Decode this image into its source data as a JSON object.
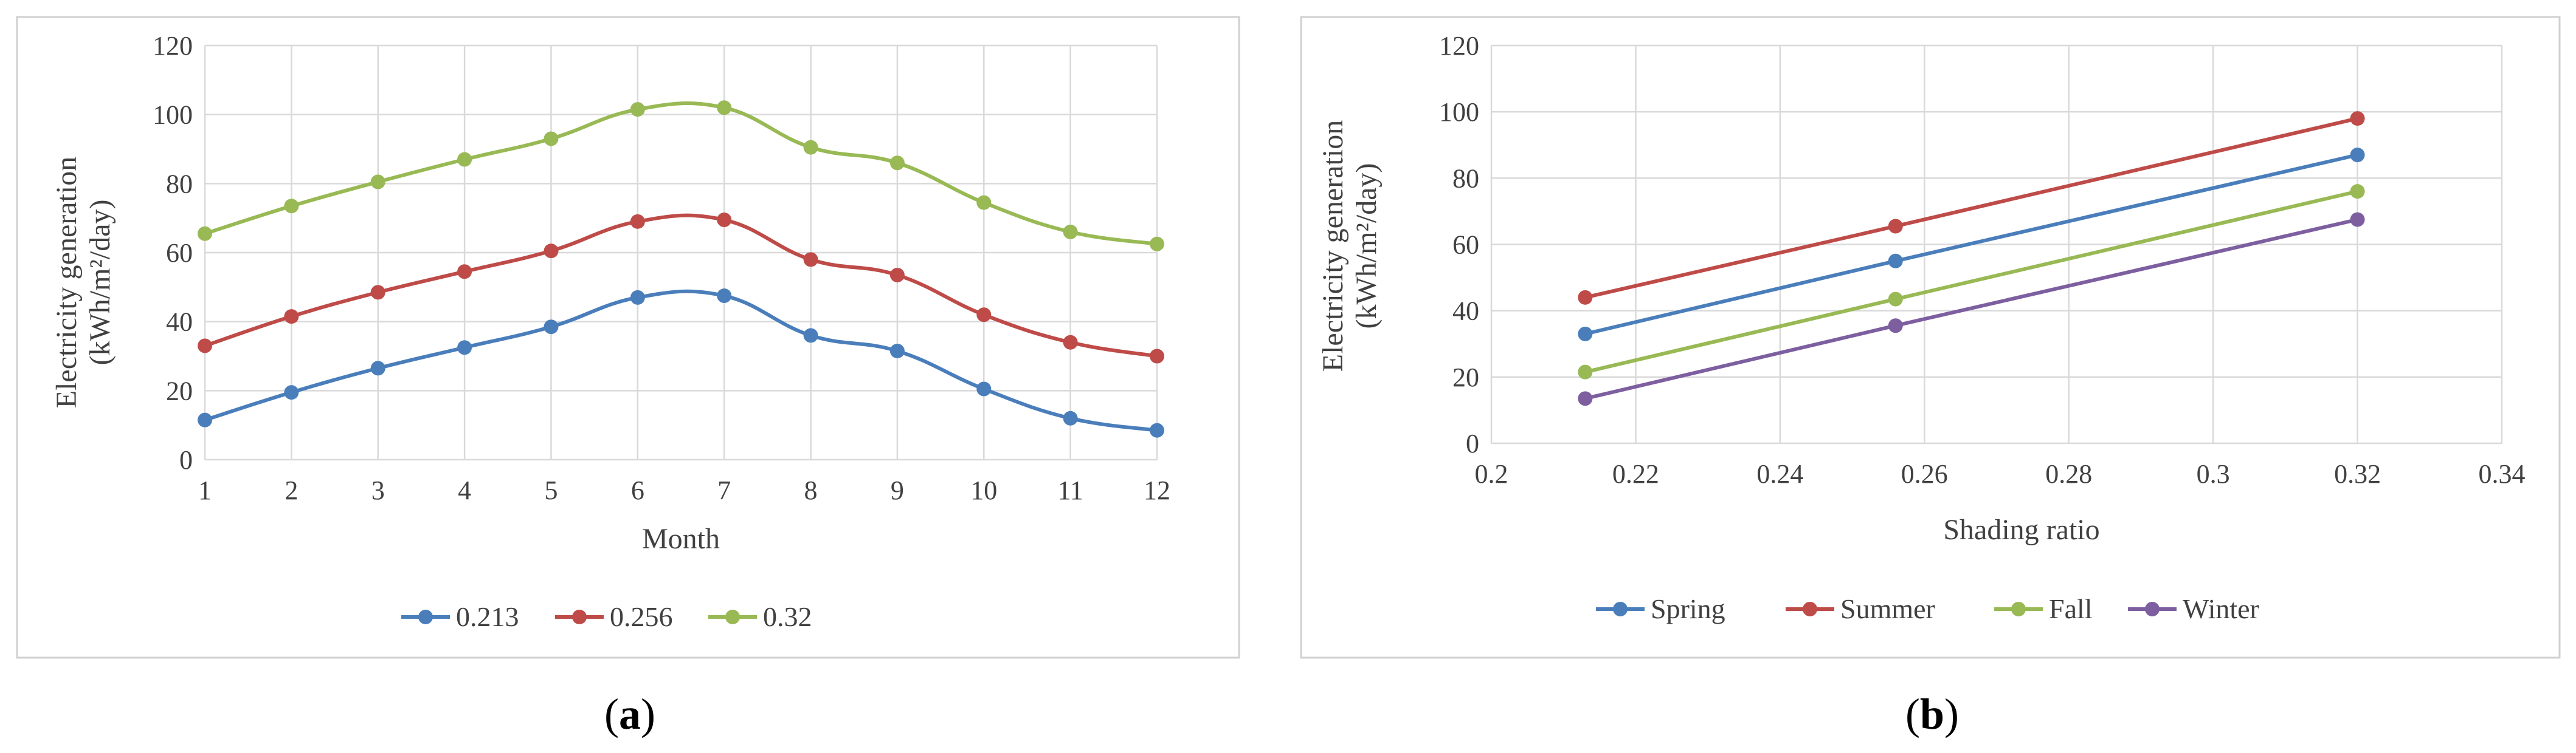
{
  "chart_data": [
    {
      "type": "line",
      "smooth": true,
      "xlabel": "Month",
      "ylabel_line1": "Electricity  generation",
      "ylabel_line2": "(kWh/m²/day)",
      "categories": [
        1,
        2,
        3,
        4,
        5,
        6,
        7,
        8,
        9,
        10,
        11,
        12
      ],
      "xticks": [
        "1",
        "2",
        "3",
        "4",
        "5",
        "6",
        "7",
        "8",
        "9",
        "10",
        "11",
        "12"
      ],
      "ylim": [
        0,
        120
      ],
      "yticks": [
        0,
        20,
        40,
        60,
        80,
        100,
        120
      ],
      "grid": true,
      "legend_position": "bottom",
      "series": [
        {
          "name": "0.213",
          "color": "#4a7ebb",
          "values": [
            11.5,
            19.5,
            26.5,
            32.5,
            38.5,
            47,
            47.5,
            36,
            31.5,
            20.5,
            12,
            8.5
          ]
        },
        {
          "name": "0.256",
          "color": "#be4b48",
          "values": [
            33,
            41.5,
            48.5,
            54.5,
            60.5,
            69,
            69.5,
            58,
            53.5,
            42,
            34,
            30
          ]
        },
        {
          "name": "0.32",
          "color": "#98b954",
          "values": [
            65.5,
            73.5,
            80.5,
            87,
            93,
            101.5,
            102,
            90.5,
            86,
            74.5,
            66,
            62.5
          ]
        }
      ],
      "caption": "a"
    },
    {
      "type": "line",
      "smooth": false,
      "xlabel": "Shading ratio",
      "ylabel_line1": "Electricity  generation",
      "ylabel_line2": "(kWh/m²/day)",
      "x": [
        0.213,
        0.256,
        0.32
      ],
      "xlim": [
        0.2,
        0.34
      ],
      "xticks": [
        "0.2",
        "0.22",
        "0.24",
        "0.26",
        "0.28",
        "0.3",
        "0.32",
        "0.34"
      ],
      "xtick_values": [
        0.2,
        0.22,
        0.24,
        0.26,
        0.28,
        0.3,
        0.32,
        0.34
      ],
      "ylim": [
        0,
        120
      ],
      "yticks": [
        0,
        20,
        40,
        60,
        80,
        100,
        120
      ],
      "grid": true,
      "legend_position": "bottom",
      "series": [
        {
          "name": "Spring",
          "color": "#4a7ebb",
          "values": [
            33,
            55,
            87
          ]
        },
        {
          "name": "Summer",
          "color": "#be4b48",
          "values": [
            44,
            65.5,
            98
          ]
        },
        {
          "name": "Fall",
          "color": "#98b954",
          "values": [
            21.5,
            43.5,
            76
          ]
        },
        {
          "name": "Winter",
          "color": "#7d5fa0",
          "values": [
            13.5,
            35.5,
            67.5
          ]
        }
      ],
      "caption": "b"
    }
  ]
}
